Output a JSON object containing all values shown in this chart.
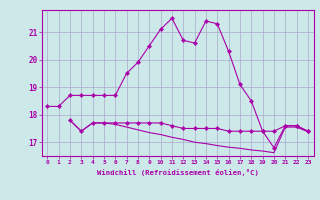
{
  "background_color": "#cce8e8",
  "grid_color": "#aaaacc",
  "line_color": "#aa00aa",
  "xlim_min": -0.5,
  "xlim_max": 23.5,
  "ylim_min": 16.5,
  "ylim_max": 21.8,
  "yticks": [
    17,
    18,
    19,
    20,
    21
  ],
  "xticks": [
    0,
    1,
    2,
    3,
    4,
    5,
    6,
    7,
    8,
    9,
    10,
    11,
    12,
    13,
    14,
    15,
    16,
    17,
    18,
    19,
    20,
    21,
    22,
    23
  ],
  "xlabel": "Windchill (Refroidissement éolien,°C)",
  "series1_x": [
    0,
    1,
    2,
    3,
    4,
    5,
    6,
    7,
    8,
    9,
    10,
    11,
    12,
    13,
    14,
    15,
    16,
    17,
    18,
    19,
    20,
    21,
    22,
    23
  ],
  "series1_y": [
    18.3,
    18.3,
    18.7,
    18.7,
    18.7,
    18.7,
    18.7,
    19.5,
    19.9,
    20.5,
    21.1,
    21.5,
    20.7,
    20.6,
    21.4,
    21.3,
    20.3,
    19.1,
    18.5,
    17.4,
    17.4,
    17.6,
    17.6,
    17.4
  ],
  "series2_x": [
    2,
    3,
    4,
    5,
    6,
    7,
    8,
    9,
    10,
    11,
    12,
    13,
    14,
    15,
    16,
    17,
    18,
    19,
    20,
    21,
    22,
    23
  ],
  "series2_y": [
    17.8,
    17.4,
    17.7,
    17.7,
    17.7,
    17.7,
    17.7,
    17.7,
    17.7,
    17.6,
    17.5,
    17.5,
    17.5,
    17.5,
    17.4,
    17.4,
    17.4,
    17.4,
    16.8,
    17.6,
    17.6,
    17.4
  ],
  "series3_x": [
    2,
    3,
    4,
    5,
    6,
    7,
    8,
    9,
    10,
    11,
    12,
    13,
    14,
    15,
    16,
    17,
    18,
    19,
    20,
    21,
    22,
    23
  ],
  "series3_y": [
    17.8,
    17.4,
    17.7,
    17.7,
    17.65,
    17.55,
    17.45,
    17.35,
    17.28,
    17.18,
    17.1,
    17.0,
    16.95,
    16.88,
    16.82,
    16.78,
    16.72,
    16.68,
    16.62,
    17.55,
    17.55,
    17.38
  ]
}
